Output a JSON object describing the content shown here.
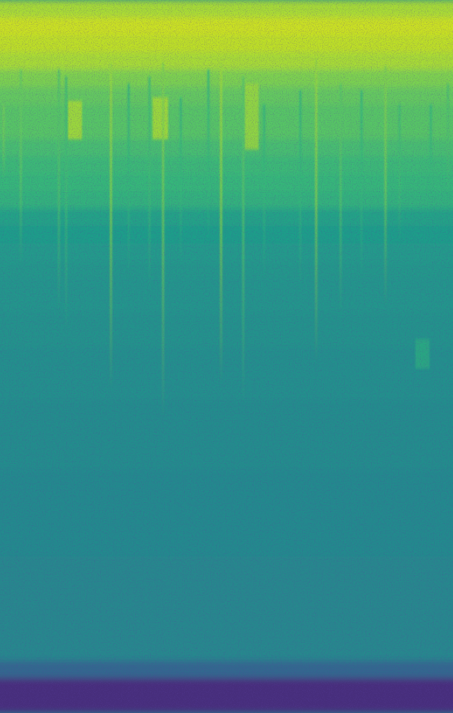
{
  "chart_data": {
    "type": "heatmap",
    "tick_labels": false,
    "xlim": [
      0,
      100
    ],
    "ylim": [
      0,
      41
    ],
    "zlim": [
      0,
      1
    ],
    "cells": [
      0.78,
      0.85,
      0.82,
      0.78,
      0.72,
      0.68,
      0.66,
      0.66,
      0.63,
      0.61,
      0.6,
      0.58,
      0.52,
      0.5,
      0.49,
      0.48,
      0.47,
      0.47,
      0.46,
      0.46,
      0.45,
      0.45,
      0.45,
      0.44,
      0.44,
      0.44,
      0.44,
      0.43,
      0.43,
      0.43,
      0.43,
      0.43,
      0.42,
      0.42,
      0.42,
      0.42,
      0.42,
      0.42,
      0.3,
      0.12,
      0.12
    ],
    "streaks": [
      {
        "x": 0.8,
        "y0": 6,
        "y1": 10.4,
        "value": 0.7
      },
      {
        "x": 4.6,
        "y0": 4,
        "y1": 15.2,
        "value": 0.68
      },
      {
        "x": 13.0,
        "y0": 4,
        "y1": 18,
        "value": 0.65
      },
      {
        "x": 14.6,
        "y0": 4.4,
        "y1": 19.2,
        "value": 0.62
      },
      {
        "x": 24.5,
        "y0": 3.6,
        "y1": 22.4,
        "value": 0.75
      },
      {
        "x": 28.4,
        "y0": 4.8,
        "y1": 16,
        "value": 0.6
      },
      {
        "x": 33.0,
        "y0": 4.4,
        "y1": 16.8,
        "value": 0.62
      },
      {
        "x": 36.0,
        "y0": 3.6,
        "y1": 24,
        "value": 0.72
      },
      {
        "x": 39.9,
        "y0": 5.6,
        "y1": 15.2,
        "value": 0.6
      },
      {
        "x": 46.0,
        "y0": 4,
        "y1": 14,
        "value": 0.6
      },
      {
        "x": 48.8,
        "y0": 3.6,
        "y1": 22,
        "value": 0.76
      },
      {
        "x": 53.7,
        "y0": 4.4,
        "y1": 23.2,
        "value": 0.66
      },
      {
        "x": 58.3,
        "y0": 6,
        "y1": 16,
        "value": 0.6
      },
      {
        "x": 66.3,
        "y0": 5.2,
        "y1": 16.8,
        "value": 0.6
      },
      {
        "x": 69.8,
        "y0": 3.4,
        "y1": 20.8,
        "value": 0.75
      },
      {
        "x": 75.2,
        "y0": 4.8,
        "y1": 18,
        "value": 0.66
      },
      {
        "x": 79.8,
        "y0": 5.2,
        "y1": 16,
        "value": 0.6
      },
      {
        "x": 85.1,
        "y0": 3.8,
        "y1": 17.6,
        "value": 0.72
      },
      {
        "x": 88.2,
        "y0": 6,
        "y1": 14,
        "value": 0.62
      },
      {
        "x": 95.1,
        "y0": 6,
        "y1": 12,
        "value": 0.6
      },
      {
        "x": 98.9,
        "y0": 4.8,
        "y1": 11.2,
        "value": 0.64
      }
    ],
    "patches": [
      {
        "x0": 15.0,
        "x1": 18.1,
        "y0": 5.8,
        "y1": 8,
        "value": 0.78
      },
      {
        "x0": 33.7,
        "x1": 37.1,
        "y0": 5.6,
        "y1": 8,
        "value": 0.78
      },
      {
        "x0": 54.0,
        "x1": 57.1,
        "y0": 4.8,
        "y1": 8.6,
        "value": 0.76
      },
      {
        "x0": 91.7,
        "x1": 94.8,
        "y0": 19.5,
        "y1": 21.2,
        "value": 0.55
      }
    ]
  }
}
